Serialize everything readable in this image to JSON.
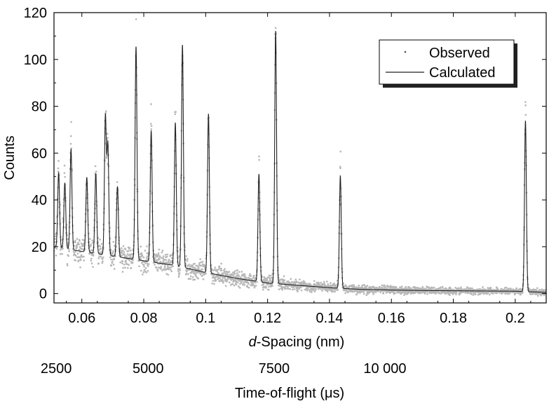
{
  "chart_data": {
    "type": "line",
    "title": "",
    "xlabel_italic_prefix": "d",
    "xlabel_rest": "-Spacing (nm)",
    "ylabel": "Counts",
    "secondary_xlabel": "Time-of-flight (μs)",
    "xlim": [
      0.051,
      0.21
    ],
    "ylim": [
      -4,
      120
    ],
    "x_ticks": [
      0.06,
      0.08,
      0.1,
      0.12,
      0.14,
      0.16,
      0.18,
      0.2
    ],
    "x_tick_labels": [
      "0.06",
      "0.08",
      "0.1",
      "0.12",
      "0.14",
      "0.16",
      "0.18",
      "0.2"
    ],
    "y_ticks": [
      0,
      20,
      40,
      60,
      80,
      100,
      120
    ],
    "y_tick_labels": [
      "0",
      "20",
      "40",
      "60",
      "80",
      "100",
      "120"
    ],
    "secondary_tick_labels": [
      "2500",
      "5000",
      "7500",
      "10 000"
    ],
    "secondary_tick_d_positions": [
      0.0517,
      0.0814,
      0.1221,
      0.1579
    ],
    "grid": false,
    "legend_position": "top-right",
    "background": [
      {
        "d": 0.051,
        "y": 20
      },
      {
        "d": 0.06,
        "y": 18
      },
      {
        "d": 0.07,
        "y": 16
      },
      {
        "d": 0.08,
        "y": 14
      },
      {
        "d": 0.09,
        "y": 12
      },
      {
        "d": 0.1,
        "y": 9
      },
      {
        "d": 0.11,
        "y": 6.5
      },
      {
        "d": 0.12,
        "y": 4.5
      },
      {
        "d": 0.13,
        "y": 3.5
      },
      {
        "d": 0.14,
        "y": 2.5
      },
      {
        "d": 0.15,
        "y": 1.8
      },
      {
        "d": 0.16,
        "y": 1.5
      },
      {
        "d": 0.17,
        "y": 1.3
      },
      {
        "d": 0.18,
        "y": 1.2
      },
      {
        "d": 0.19,
        "y": 1.1
      },
      {
        "d": 0.2,
        "y": 1
      },
      {
        "d": 0.21,
        "y": 0.5
      }
    ],
    "peaks": [
      {
        "d": 0.0525,
        "height": 32
      },
      {
        "d": 0.0545,
        "height": 28
      },
      {
        "d": 0.0565,
        "height": 43
      },
      {
        "d": 0.0616,
        "height": 32
      },
      {
        "d": 0.0645,
        "height": 34
      },
      {
        "d": 0.0676,
        "height": 59
      },
      {
        "d": 0.0684,
        "height": 47
      },
      {
        "d": 0.0715,
        "height": 30
      },
      {
        "d": 0.0775,
        "height": 91
      },
      {
        "d": 0.0824,
        "height": 56
      },
      {
        "d": 0.0902,
        "height": 61
      },
      {
        "d": 0.0925,
        "height": 95
      },
      {
        "d": 0.1009,
        "height": 68
      },
      {
        "d": 0.1172,
        "height": 46
      },
      {
        "d": 0.1226,
        "height": 108
      },
      {
        "d": 0.1435,
        "height": 48
      },
      {
        "d": 0.2033,
        "height": 73
      }
    ],
    "peak_width_d": 0.0003,
    "series": [
      {
        "name": "Observed",
        "style": "points",
        "color": "#b8b8b8"
      },
      {
        "name": "Calculated",
        "style": "line",
        "color": "#222222"
      }
    ]
  }
}
